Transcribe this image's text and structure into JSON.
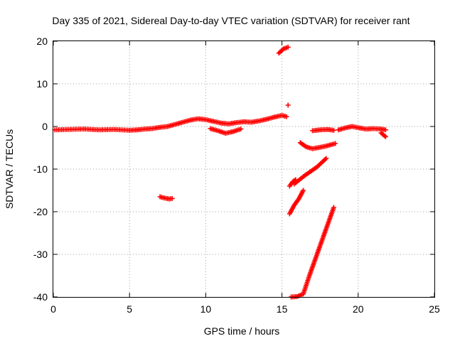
{
  "chart_data": {
    "type": "scatter",
    "title": "Day 335 of 2021, Sidereal Day-to-day VTEC variation (SDTVAR) for receiver rant",
    "xlabel": "GPS time / hours",
    "ylabel": "SDTVAR / TECUs",
    "xlim": [
      0,
      25
    ],
    "ylim": [
      -40,
      20
    ],
    "xticks": [
      "0",
      "5",
      "10",
      "15",
      "20",
      "25"
    ],
    "yticks": [
      "-40",
      "-30",
      "-20",
      "-10",
      "0",
      "10",
      "20"
    ],
    "grid": true,
    "marker": "+",
    "marker_color": "#ff0000",
    "segments": [
      {
        "x": [
          0.1,
          1.0,
          2.0,
          3.0,
          4.0,
          5.0,
          5.5,
          6.0,
          6.5,
          7.0,
          7.5,
          8.0,
          8.5,
          9.0,
          9.5,
          10.0,
          10.5,
          11.0,
          11.5,
          12.0,
          12.5,
          13.0,
          13.5,
          14.0,
          14.5,
          15.0,
          15.3
        ],
        "y": [
          -0.8,
          -0.7,
          -0.6,
          -0.8,
          -0.7,
          -0.9,
          -0.8,
          -0.6,
          -0.5,
          -0.2,
          0.0,
          0.5,
          1.0,
          1.5,
          1.8,
          1.6,
          1.2,
          0.8,
          0.6,
          0.9,
          1.1,
          1.0,
          1.3,
          1.7,
          2.2,
          2.6,
          2.3
        ]
      },
      {
        "x": [
          10.3,
          10.8,
          11.3,
          11.8,
          12.3
        ],
        "y": [
          -0.5,
          -1.0,
          -1.6,
          -1.2,
          -0.6
        ]
      },
      {
        "x": [
          7.0,
          7.3,
          7.6,
          7.8
        ],
        "y": [
          -16.5,
          -16.8,
          -17.0,
          -16.9
        ]
      },
      {
        "x": [
          14.8,
          15.1,
          15.4
        ],
        "y": [
          17.2,
          18.2,
          18.6
        ]
      },
      {
        "x": [
          15.4
        ],
        "y": [
          5.0
        ]
      },
      {
        "x": [
          15.5,
          15.7,
          15.9
        ],
        "y": [
          -14.0,
          -13.0,
          -12.5
        ]
      },
      {
        "x": [
          15.5,
          15.8,
          16.1,
          16.4
        ],
        "y": [
          -20.5,
          -18.5,
          -17.0,
          -15.0
        ]
      },
      {
        "x": [
          15.8,
          16.5,
          17.3,
          17.9
        ],
        "y": [
          -13.5,
          -11.5,
          -9.5,
          -7.5
        ]
      },
      {
        "x": [
          15.6,
          16.0,
          16.4,
          16.8,
          17.2,
          17.6,
          18.0,
          18.4
        ],
        "y": [
          -40.0,
          -39.9,
          -39.3,
          -35.0,
          -31.0,
          -27.0,
          -23.0,
          -19.0
        ]
      },
      {
        "x": [
          16.2,
          16.6,
          17.0,
          17.5,
          18.0,
          18.5
        ],
        "y": [
          -3.8,
          -4.8,
          -5.2,
          -4.9,
          -4.5,
          -4.0
        ]
      },
      {
        "x": [
          17.0,
          17.5,
          18.0,
          18.4
        ],
        "y": [
          -1.0,
          -0.8,
          -0.7,
          -0.9
        ]
      },
      {
        "x": [
          18.7,
          19.2,
          19.6,
          20.0,
          20.5,
          21.0,
          21.5,
          21.8
        ],
        "y": [
          -0.8,
          -0.3,
          0.0,
          -0.3,
          -0.6,
          -0.5,
          -0.6,
          -0.8
        ]
      },
      {
        "x": [
          21.5,
          21.8
        ],
        "y": [
          -1.5,
          -2.4
        ]
      }
    ]
  }
}
